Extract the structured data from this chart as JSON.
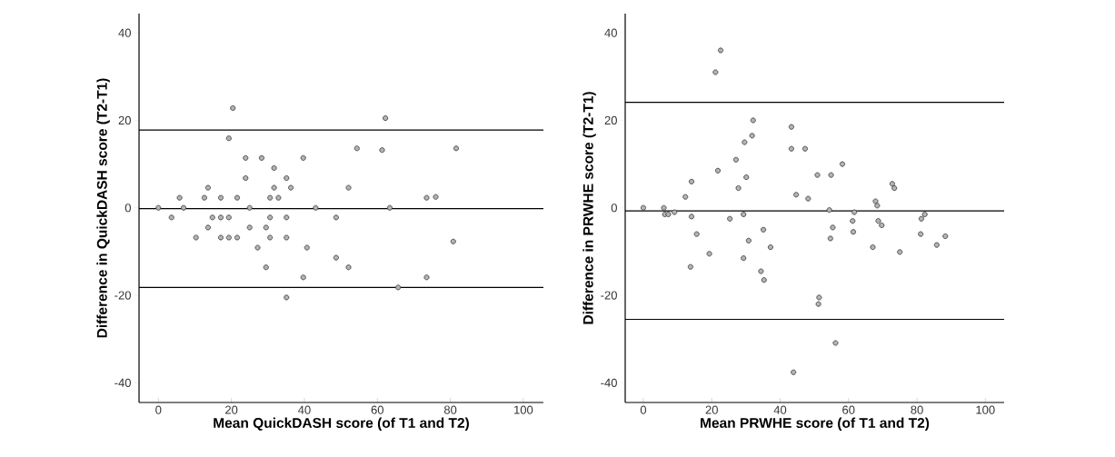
{
  "chart_data": [
    {
      "type": "scatter",
      "xlabel": "Mean QuickDASH score (of T1 and T2)",
      "ylabel": "Difference in QuickDASH score (T2-T1)",
      "xlim": [
        -5.3,
        105.5
      ],
      "ylim": [
        -44.5,
        44.4
      ],
      "xticks": [
        0,
        20,
        40,
        60,
        80,
        100
      ],
      "yticks": [
        -40,
        -20,
        0,
        20,
        40
      ],
      "marker": "circle",
      "color": "#b4b4b4",
      "ref_lines": [
        {
          "axis": "y",
          "value": 17.8
        },
        {
          "axis": "y",
          "value": -0.2
        },
        {
          "axis": "y",
          "value": -18.2
        }
      ],
      "x": [
        20.4,
        62.2,
        19.3,
        54.4,
        61.3,
        23.9,
        28.3,
        39.7,
        31.7,
        23.9,
        35.1,
        13.6,
        31.7,
        36.3,
        52.1,
        5.8,
        12.6,
        17.1,
        21.6,
        30.6,
        32.9,
        73.5,
        76.0,
        0,
        6.9,
        25.0,
        43.1,
        63.4,
        3.6,
        14.8,
        17.1,
        19.3,
        30.6,
        35.1,
        48.7,
        13.6,
        25.0,
        29.5,
        10.3,
        17.1,
        19.3,
        21.6,
        30.6,
        35.1,
        27.2,
        40.7,
        48.7,
        29.5,
        52.1,
        39.7,
        73.5,
        65.7,
        35.1,
        81.6,
        80.8
      ],
      "values": [
        22.8,
        20.5,
        15.9,
        13.6,
        13.2,
        11.4,
        11.4,
        11.4,
        9.1,
        6.8,
        6.8,
        4.6,
        4.6,
        4.6,
        4.6,
        2.3,
        2.3,
        2.3,
        2.3,
        2.3,
        2.3,
        2.3,
        2.5,
        0,
        0,
        0,
        0,
        0,
        -2.2,
        -2.2,
        -2.2,
        -2.2,
        -2.2,
        -2.2,
        -2.2,
        -4.5,
        -4.5,
        -4.5,
        -6.8,
        -6.8,
        -6.8,
        -6.8,
        -6.8,
        -6.8,
        -9.1,
        -9.1,
        -11.4,
        -13.6,
        -13.6,
        -15.9,
        -15.9,
        -18.2,
        -20.5,
        13.6,
        -7.7
      ]
    },
    {
      "type": "scatter",
      "xlabel": "Mean PRWHE score (of T1 and T2)",
      "ylabel": "Difference in PRWHE score (T2-T1)",
      "xlim": [
        -5.3,
        105.5
      ],
      "ylim": [
        -44.5,
        44.4
      ],
      "xticks": [
        0,
        20,
        40,
        60,
        80,
        100
      ],
      "yticks": [
        -40,
        -20,
        0,
        20,
        40
      ],
      "marker": "circle",
      "color": "#b4b4b4",
      "ref_lines": [
        {
          "axis": "y",
          "value": 24.1
        },
        {
          "axis": "y",
          "value": -0.7
        },
        {
          "axis": "y",
          "value": -25.5
        }
      ],
      "x": [
        22.6,
        21.1,
        32.1,
        43.3,
        31.8,
        29.6,
        43.3,
        47.3,
        27.1,
        58.2,
        21.8,
        50.9,
        54.9,
        14.1,
        30.1,
        27.8,
        12.3,
        44.7,
        48.2,
        0,
        6.0,
        6.3,
        7.3,
        9.1,
        14.1,
        25.3,
        29.3,
        54.4,
        61.7,
        61.2,
        55.4,
        61.4,
        54.7,
        15.6,
        35.1,
        30.8,
        37.2,
        19.3,
        29.3,
        13.8,
        34.4,
        35.3,
        51.4,
        51.2,
        56.2,
        43.9,
        72.8,
        73.4,
        67.9,
        68.4,
        68.7,
        69.7,
        67.1,
        75.0,
        82.3,
        81.3,
        81.1,
        85.8,
        88.3
      ],
      "values": [
        36.0,
        31.0,
        20.0,
        18.5,
        16.5,
        15.0,
        13.5,
        13.5,
        11.0,
        10.0,
        8.5,
        7.5,
        7.5,
        6.0,
        7.0,
        4.5,
        2.5,
        3.0,
        2.1,
        0,
        0,
        -1.5,
        -1.5,
        -1.0,
        -2.0,
        -2.5,
        -1.5,
        -0.5,
        -1.0,
        -3.0,
        -4.5,
        -5.5,
        -7.0,
        -6.0,
        -5.0,
        -7.5,
        -9.0,
        -10.5,
        -11.5,
        -13.5,
        -14.5,
        -16.5,
        -20.5,
        -22.0,
        -30.9,
        -37.6,
        5.5,
        4.5,
        1.5,
        0.5,
        -3.0,
        -4.0,
        -9.0,
        -10.1,
        -1.5,
        -2.5,
        -6.0,
        -8.5,
        -6.5
      ]
    }
  ]
}
